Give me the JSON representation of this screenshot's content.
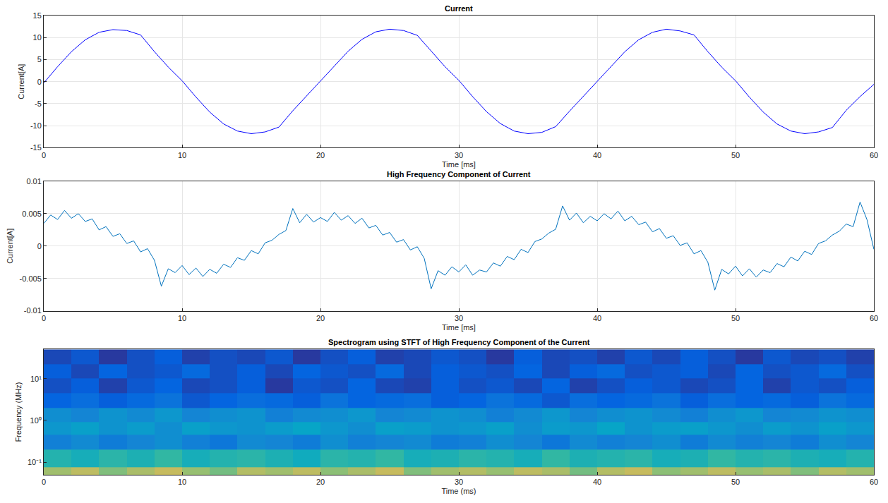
{
  "chart_data": [
    {
      "type": "line",
      "title": "Current",
      "x_label": "Time [ms]",
      "y_label": "Current[A]",
      "xlim": [
        0,
        60
      ],
      "xticks": [
        0,
        10,
        20,
        30,
        40,
        50,
        60
      ],
      "ylim": [
        -15,
        15
      ],
      "yticks": [
        -15,
        -10,
        -5,
        0,
        5,
        10,
        15
      ],
      "grid": true,
      "color": "#0000ff",
      "x": [
        0,
        1,
        2,
        3,
        4,
        5,
        6,
        7,
        8,
        9,
        10,
        11,
        12,
        13,
        14,
        15,
        16,
        17,
        18,
        19,
        20,
        21,
        22,
        23,
        24,
        25,
        26,
        27,
        28,
        29,
        30,
        31,
        32,
        33,
        34,
        35,
        36,
        37,
        38,
        39,
        40,
        41,
        42,
        43,
        44,
        45,
        46,
        47,
        48,
        49,
        50,
        51,
        52,
        53,
        54,
        55,
        56,
        57,
        58,
        59,
        60
      ],
      "values": [
        -0.3,
        3.4,
        6.8,
        9.5,
        11.2,
        11.8,
        11.6,
        10.6,
        6.8,
        3.3,
        0.2,
        -3.5,
        -6.9,
        -9.6,
        -11.2,
        -11.8,
        -11.4,
        -10.3,
        -6.6,
        -3.2,
        0.1,
        3.5,
        6.9,
        9.6,
        11.3,
        11.9,
        11.6,
        10.5,
        6.9,
        3.4,
        0.3,
        -3.4,
        -6.8,
        -9.5,
        -11.2,
        -11.8,
        -11.5,
        -10.2,
        -6.7,
        -3.3,
        0.0,
        3.5,
        6.8,
        9.5,
        11.2,
        11.9,
        11.5,
        10.6,
        6.8,
        3.3,
        0.2,
        -3.5,
        -6.9,
        -9.6,
        -11.2,
        -11.8,
        -11.4,
        -10.4,
        -6.5,
        -3.4,
        -0.6
      ]
    },
    {
      "type": "line",
      "title": "High Frequency Component of Current",
      "x_label": "Time [ms]",
      "y_label": "Current[A]",
      "xlim": [
        0,
        60
      ],
      "xticks": [
        0,
        10,
        20,
        30,
        40,
        50,
        60
      ],
      "ylim": [
        -0.01,
        0.01
      ],
      "yticks": [
        -0.01,
        -0.005,
        0,
        0.005,
        0.01
      ],
      "grid": true,
      "color": "#0072bd",
      "x": [
        0,
        0.5,
        1,
        1.5,
        2,
        2.5,
        3,
        3.5,
        4,
        4.5,
        5,
        5.5,
        6,
        6.5,
        7,
        7.5,
        8,
        8.5,
        9,
        9.5,
        10,
        10.5,
        11,
        11.5,
        12,
        12.5,
        13,
        13.5,
        14,
        14.5,
        15,
        15.5,
        16,
        16.5,
        17,
        17.5,
        18,
        18.5,
        19,
        19.5,
        20,
        20.5,
        21,
        21.5,
        22,
        22.5,
        23,
        23.5,
        24,
        24.5,
        25,
        25.5,
        26,
        26.5,
        27,
        27.5,
        28,
        28.5,
        29,
        29.5,
        30,
        30.5,
        31,
        31.5,
        32,
        32.5,
        33,
        33.5,
        34,
        34.5,
        35,
        35.5,
        36,
        36.5,
        37,
        37.5,
        38,
        38.5,
        39,
        39.5,
        40,
        40.5,
        41,
        41.5,
        42,
        42.5,
        43,
        43.5,
        44,
        44.5,
        45,
        45.5,
        46,
        46.5,
        47,
        47.5,
        48,
        48.5,
        49,
        49.5,
        50,
        50.5,
        51,
        51.5,
        52,
        52.5,
        53,
        53.5,
        54,
        54.5,
        55,
        55.5,
        56,
        56.5,
        57,
        57.5,
        58,
        58.5,
        59,
        59.5,
        60
      ],
      "values": [
        0.0035,
        0.0048,
        0.0041,
        0.0055,
        0.0043,
        0.005,
        0.0038,
        0.0042,
        0.0025,
        0.003,
        0.0015,
        0.0019,
        0.0004,
        0.0008,
        -0.0009,
        -0.0004,
        -0.0022,
        -0.0062,
        -0.0035,
        -0.0041,
        -0.003,
        -0.0044,
        -0.0034,
        -0.0047,
        -0.0036,
        -0.0042,
        -0.0028,
        -0.0033,
        -0.0018,
        -0.0022,
        -0.0007,
        -0.0012,
        0.0005,
        0.0009,
        0.0018,
        0.0024,
        0.0058,
        0.0036,
        0.0049,
        0.0037,
        0.0044,
        0.0038,
        0.0052,
        0.004,
        0.0047,
        0.0035,
        0.0043,
        0.0028,
        0.0032,
        0.0017,
        0.0021,
        0.0006,
        0.001,
        -0.0006,
        -0.0001,
        -0.0019,
        -0.0066,
        -0.0038,
        -0.0045,
        -0.0032,
        -0.004,
        -0.0029,
        -0.0045,
        -0.0037,
        -0.004,
        -0.0026,
        -0.0031,
        -0.0016,
        -0.0021,
        -0.0005,
        -0.001,
        0.0007,
        0.0011,
        0.002,
        0.0026,
        0.0062,
        0.004,
        0.0051,
        0.0036,
        0.0046,
        0.0039,
        0.005,
        0.0042,
        0.0054,
        0.0039,
        0.0046,
        0.0033,
        0.0037,
        0.0022,
        0.0027,
        0.0012,
        0.0016,
        0.0001,
        0.0005,
        -0.0012,
        -0.0007,
        -0.0025,
        -0.0068,
        -0.0036,
        -0.0043,
        -0.0031,
        -0.0046,
        -0.0035,
        -0.0048,
        -0.0037,
        -0.0041,
        -0.0027,
        -0.0032,
        -0.0017,
        -0.0023,
        -0.0008,
        -0.0013,
        0.0004,
        0.0008,
        0.0017,
        0.0023,
        0.0034,
        0.003,
        0.0068,
        0.0041,
        -0.0005
      ]
    },
    {
      "type": "heatmap",
      "title": "Spectrogram using STFT of High Frequency Component of the Current",
      "x_label": "Time (ms)",
      "y_label": "Frequency (MHz)",
      "log": "y",
      "grid": false,
      "xlim": [
        0,
        60
      ],
      "xticks": [
        0,
        10,
        20,
        30,
        40,
        50,
        60
      ],
      "ylim": [
        0.05,
        50
      ],
      "yticks": [
        {
          "value": 0.1,
          "label": "10⁻¹"
        },
        {
          "value": 1,
          "label": "10⁰"
        },
        {
          "value": 10,
          "label": "10¹"
        }
      ],
      "clim": [
        -135,
        -75
      ],
      "time_bins": [
        0,
        2,
        4,
        6,
        8,
        10,
        12,
        14,
        16,
        18,
        20,
        22,
        24,
        26,
        28,
        30,
        32,
        34,
        36,
        38,
        40,
        42,
        44,
        46,
        48,
        50,
        52,
        54,
        56,
        58,
        60
      ],
      "frequency_bins": [
        0.05,
        0.075,
        0.2,
        0.45,
        0.9,
        2,
        4.5,
        10,
        22,
        50
      ],
      "cells": [
        [
          -96,
          -93,
          -99,
          -95,
          -92,
          -97,
          -100,
          -94,
          -96,
          -93,
          -98,
          -95,
          -92,
          -99,
          -96,
          -94,
          -97,
          -93,
          -95,
          -100,
          -94,
          -92,
          -98,
          -96,
          -93,
          -97,
          -95,
          -99,
          -94,
          -96
        ],
        [
          -108,
          -110,
          -107,
          -109,
          -106,
          -110,
          -108,
          -107,
          -109,
          -111,
          -107,
          -108,
          -106,
          -110,
          -109,
          -107,
          -108,
          -110,
          -106,
          -109,
          -108,
          -107,
          -110,
          -109,
          -106,
          -108,
          -107,
          -109,
          -110,
          -108
        ],
        [
          -121,
          -119,
          -122,
          -120,
          -118,
          -121,
          -123,
          -119,
          -120,
          -122,
          -118,
          -121,
          -120,
          -119,
          -122,
          -121,
          -118,
          -120,
          -123,
          -119,
          -121,
          -120,
          -118,
          -122,
          -119,
          -121,
          -120,
          -122,
          -118,
          -120
        ],
        [
          -116,
          -114,
          -117,
          -115,
          -118,
          -114,
          -116,
          -117,
          -115,
          -113,
          -116,
          -118,
          -114,
          -115,
          -117,
          -116,
          -114,
          -118,
          -115,
          -116,
          -113,
          -117,
          -115,
          -114,
          -116,
          -118,
          -115,
          -117,
          -114,
          -116
        ],
        [
          -118,
          -120,
          -117,
          -119,
          -116,
          -120,
          -118,
          -117,
          -121,
          -119,
          -118,
          -116,
          -120,
          -119,
          -117,
          -118,
          -121,
          -119,
          -116,
          -120,
          -118,
          -117,
          -119,
          -121,
          -118,
          -116,
          -120,
          -119,
          -117,
          -118
        ],
        [
          -127,
          -125,
          -128,
          -126,
          -124,
          -129,
          -127,
          -125,
          -126,
          -128,
          -124,
          -127,
          -126,
          -125,
          -128,
          -127,
          -124,
          -126,
          -129,
          -125,
          -127,
          -126,
          -124,
          -128,
          -125,
          -127,
          -126,
          -128,
          -124,
          -126
        ],
        [
          -130,
          -128,
          -132,
          -129,
          -127,
          -131,
          -130,
          -128,
          -133,
          -129,
          -130,
          -127,
          -131,
          -132,
          -128,
          -130,
          -129,
          -131,
          -127,
          -132,
          -130,
          -128,
          -129,
          -131,
          -130,
          -127,
          -132,
          -129,
          -130,
          -128
        ],
        [
          -128,
          -131,
          -127,
          -130,
          -129,
          -126,
          -130,
          -128,
          -131,
          -127,
          -129,
          -130,
          -126,
          -131,
          -128,
          -129,
          -130,
          -127,
          -131,
          -128,
          -126,
          -130,
          -129,
          -128,
          -131,
          -127,
          -130,
          -129,
          -126,
          -130
        ],
        [
          -131,
          -129,
          -133,
          -130,
          -128,
          -132,
          -130,
          -131,
          -129,
          -133,
          -130,
          -128,
          -132,
          -131,
          -129,
          -130,
          -133,
          -128,
          -131,
          -130,
          -132,
          -129,
          -131,
          -128,
          -130,
          -133,
          -129,
          -131,
          -130,
          -132
        ]
      ]
    }
  ]
}
